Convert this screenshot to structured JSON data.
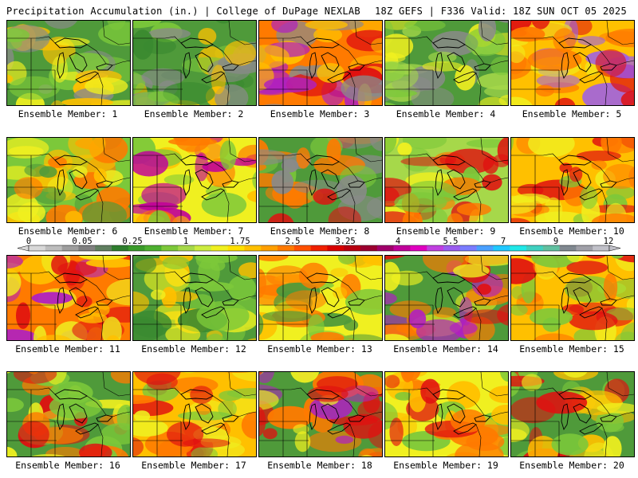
{
  "header": {
    "left_title": "Precipitation Accumulation (in.) | College of DuPage NEXLAB",
    "right_title": "18Z GEFS | F336 Valid: 18Z SUN OCT 05 2025"
  },
  "colorbar": {
    "tick_labels": [
      "0",
      "0.05",
      "0.25",
      "1",
      "1.75",
      "2.5",
      "3.25",
      "4",
      "5.5",
      "7",
      "9",
      "12"
    ],
    "colors": [
      "#d8d8d8",
      "#bdbdbd",
      "#9e9e9e",
      "#808080",
      "#5f7f5f",
      "#2e7d2e",
      "#3a9a2a",
      "#4db030",
      "#7cc83a",
      "#a6d84a",
      "#ccec40",
      "#f0f020",
      "#ffe000",
      "#ffc000",
      "#ff9f00",
      "#ff7a00",
      "#ff5000",
      "#f02000",
      "#d80000",
      "#b80010",
      "#9c0030",
      "#a0006a",
      "#c0009a",
      "#e000c0",
      "#c040e0",
      "#9a5cf0",
      "#7a7cff",
      "#4aa0ff",
      "#20c8ff",
      "#20e8e8",
      "#40d0c0",
      "#60c0a0",
      "#808890",
      "#a0a0a8",
      "#c0c0c8"
    ]
  },
  "legend_colors": {
    "dry": "#4f9a3a",
    "light": "#7cc83a",
    "moderate": "#f0f020",
    "heavy": "#ff7a00",
    "very_heavy": "#e01010",
    "extreme": "#b020c0",
    "trace": "#8a8a8a"
  },
  "panels": [
    {
      "label": "Ensemble Member: 1",
      "palette": [
        "#4f9a3a",
        "#7cc83a",
        "#f0f020",
        "#ffc000",
        "#8a8a8a"
      ]
    },
    {
      "label": "Ensemble Member: 2",
      "palette": [
        "#4f9a3a",
        "#3a8a30",
        "#8a8a8a",
        "#7cc83a",
        "#ffc000"
      ]
    },
    {
      "label": "Ensemble Member: 3",
      "palette": [
        "#ff7a00",
        "#e01010",
        "#ffc000",
        "#b020c0",
        "#8a8a8a"
      ]
    },
    {
      "label": "Ensemble Member: 4",
      "palette": [
        "#4f9a3a",
        "#7cc83a",
        "#a6d84a",
        "#f0f020",
        "#8a8a8a"
      ]
    },
    {
      "label": "Ensemble Member: 5",
      "palette": [
        "#ffc000",
        "#ff7a00",
        "#f0f020",
        "#e01010",
        "#9a5cf0"
      ]
    },
    {
      "label": "Ensemble Member: 6",
      "palette": [
        "#7cc83a",
        "#f0f020",
        "#ffc000",
        "#4f9a3a",
        "#ff7a00"
      ]
    },
    {
      "label": "Ensemble Member: 7",
      "palette": [
        "#f0f020",
        "#ffc000",
        "#ff7a00",
        "#7cc83a",
        "#c0009a"
      ]
    },
    {
      "label": "Ensemble Member: 8",
      "palette": [
        "#4f9a3a",
        "#7cc83a",
        "#8a8a8a",
        "#ff7a00",
        "#e01010"
      ]
    },
    {
      "label": "Ensemble Member: 9",
      "palette": [
        "#a6d84a",
        "#f0f020",
        "#7cc83a",
        "#ff7a00",
        "#e01010"
      ]
    },
    {
      "label": "Ensemble Member: 10",
      "palette": [
        "#ffc000",
        "#f0f020",
        "#ff7a00",
        "#7cc83a",
        "#e01010"
      ]
    },
    {
      "label": "Ensemble Member: 11",
      "palette": [
        "#ff7a00",
        "#ffc000",
        "#e01010",
        "#f0f020",
        "#b020c0"
      ]
    },
    {
      "label": "Ensemble Member: 12",
      "palette": [
        "#4f9a3a",
        "#7cc83a",
        "#3a8a30",
        "#f0f020",
        "#ffc000"
      ]
    },
    {
      "label": "Ensemble Member: 13",
      "palette": [
        "#f0f020",
        "#ffc000",
        "#7cc83a",
        "#ff7a00",
        "#4f9a3a"
      ]
    },
    {
      "label": "Ensemble Member: 14",
      "palette": [
        "#4f9a3a",
        "#f0f020",
        "#ff7a00",
        "#e01010",
        "#b020c0"
      ]
    },
    {
      "label": "Ensemble Member: 15",
      "palette": [
        "#ffc000",
        "#f0f020",
        "#7cc83a",
        "#ff7a00",
        "#e01010"
      ]
    },
    {
      "label": "Ensemble Member: 16",
      "palette": [
        "#4f9a3a",
        "#7cc83a",
        "#f0f020",
        "#ff7a00",
        "#e01010"
      ]
    },
    {
      "label": "Ensemble Member: 17",
      "palette": [
        "#ffc000",
        "#f0f020",
        "#ff7a00",
        "#7cc83a",
        "#e01010"
      ]
    },
    {
      "label": "Ensemble Member: 18",
      "palette": [
        "#4f9a3a",
        "#f0f020",
        "#ff7a00",
        "#e01010",
        "#b020c0"
      ]
    },
    {
      "label": "Ensemble Member: 19",
      "palette": [
        "#f0f020",
        "#ffc000",
        "#ff7a00",
        "#e01010",
        "#7cc83a"
      ]
    },
    {
      "label": "Ensemble Member: 20",
      "palette": [
        "#4f9a3a",
        "#7cc83a",
        "#f0f020",
        "#ffc000",
        "#e01010"
      ]
    }
  ]
}
